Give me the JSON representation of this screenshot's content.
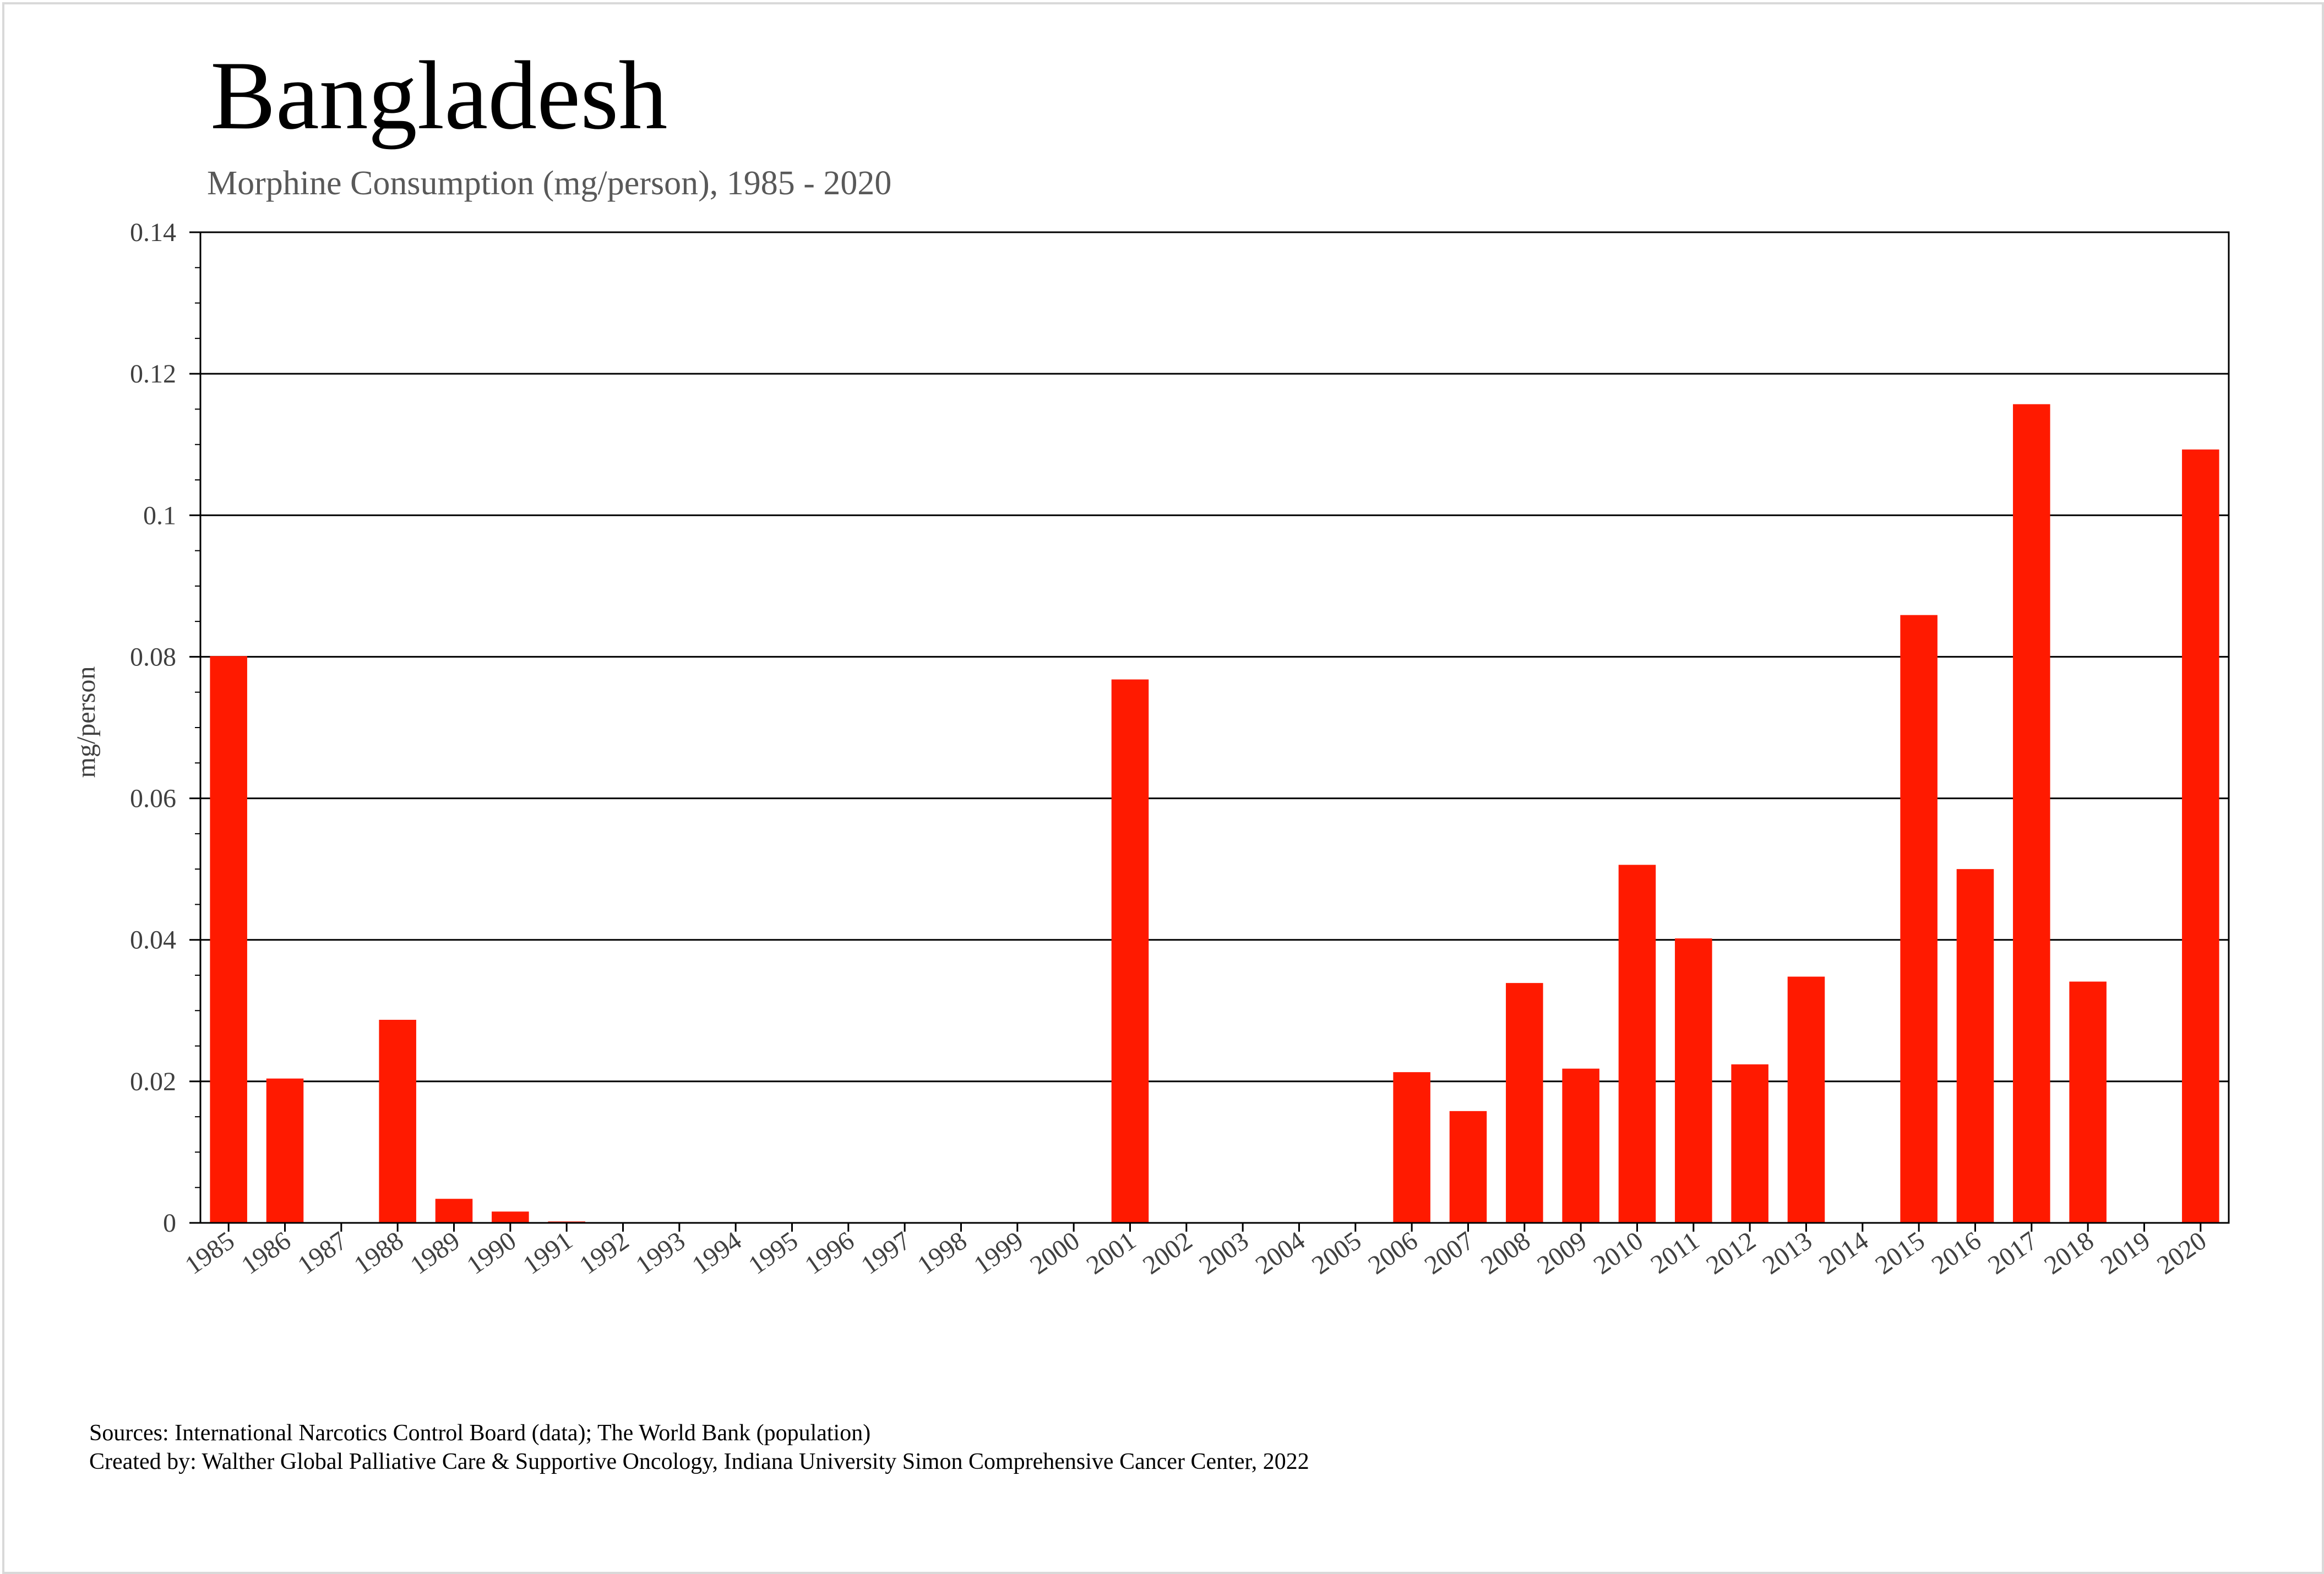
{
  "chart_data": {
    "type": "bar",
    "title": "Bangladesh",
    "subtitle": "Morphine Consumption (mg/person), 1985 - 2020",
    "xlabel": "",
    "ylabel": "mg/person",
    "ylim": [
      0,
      0.14
    ],
    "yticks": [
      "0",
      "0.02",
      "0.04",
      "0.06",
      "0.08",
      "0.1",
      "0.12",
      "0.14"
    ],
    "categories": [
      "1985",
      "1986",
      "1987",
      "1988",
      "1989",
      "1990",
      "1991",
      "1992",
      "1993",
      "1994",
      "1995",
      "1996",
      "1997",
      "1998",
      "1999",
      "2000",
      "2001",
      "2002",
      "2003",
      "2004",
      "2005",
      "2006",
      "2007",
      "2008",
      "2009",
      "2010",
      "2011",
      "2012",
      "2013",
      "2014",
      "2015",
      "2016",
      "2017",
      "2018",
      "2019",
      "2020"
    ],
    "values": [
      0.0801,
      0.0204,
      0,
      0.0287,
      0.0034,
      0.0016,
      0.0002,
      0,
      0,
      0,
      0,
      0,
      0,
      0,
      0,
      0,
      0.0768,
      0,
      0,
      0,
      0,
      0.0213,
      0.0158,
      0.0339,
      0.0218,
      0.0506,
      0.0402,
      0.0224,
      0.0348,
      0,
      0.0859,
      0.05,
      0.1157,
      0.0341,
      0,
      0.1093
    ],
    "bar_color": "#ff1a00",
    "grid": true
  },
  "footer": {
    "sources": "Sources: International Narcotics Control Board (data); The World Bank (population)",
    "created_by": "Created by: Walther  Global Palliative Care & Supportive Oncology, Indiana University Simon Comprehensive Cancer Center, 2022"
  }
}
